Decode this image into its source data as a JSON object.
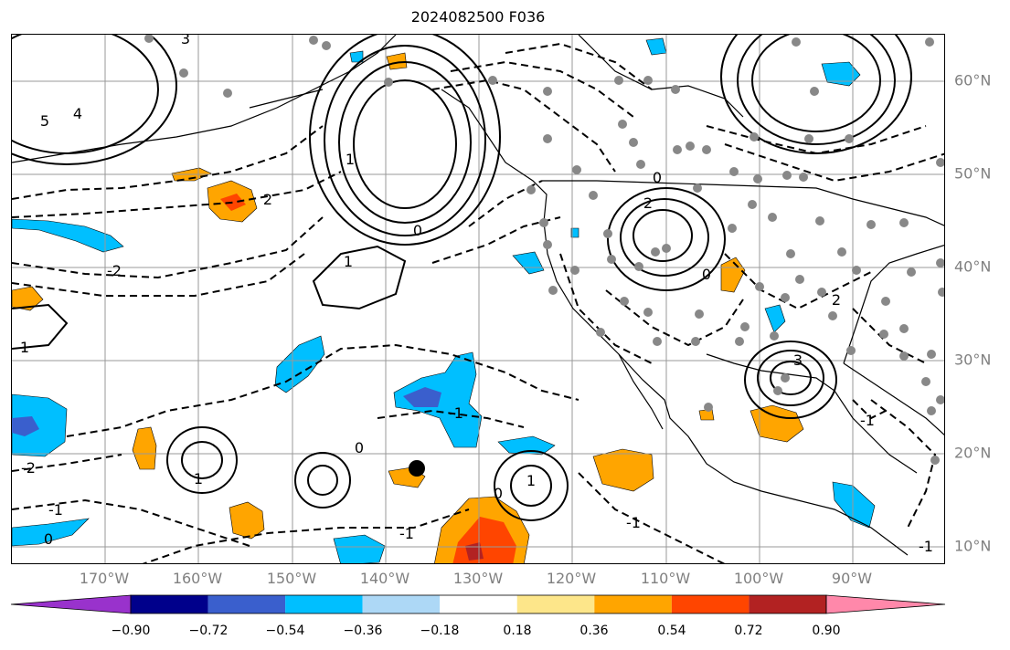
{
  "title": "2024082500 F036",
  "map": {
    "projection": "equirectangular",
    "extent": {
      "lon_min": -180,
      "lon_max": -80,
      "lat_min": 8,
      "lat_max": 65
    },
    "gridlines": true,
    "longitude_labels": [
      "170°W",
      "160°W",
      "150°W",
      "140°W",
      "130°W",
      "120°W",
      "110°W",
      "100°W",
      "90°W"
    ],
    "latitude_labels": [
      "60°N",
      "50°N",
      "40°N",
      "30°N",
      "20°N",
      "10°N"
    ],
    "contour_labels": [
      "5",
      "4",
      "3",
      "2",
      "1",
      "0",
      "-1",
      "-2",
      "1",
      "0",
      "-1",
      "3",
      "2",
      "0",
      "1",
      "-1",
      "1",
      "0",
      "1",
      "-1",
      "-2",
      "0",
      "-1",
      "2",
      "-1",
      "0"
    ],
    "station_marker": "gray circles",
    "highlight_marker": "black circle"
  },
  "colorbar": {
    "ticks": [
      "−0.90",
      "−0.72",
      "−0.54",
      "−0.36",
      "−0.18",
      "0.18",
      "0.36",
      "0.54",
      "0.72",
      "0.90"
    ],
    "colors": [
      "#9932cc",
      "#00008b",
      "#3a5fcd",
      "#00bfff",
      "#add8f6",
      "#ffffff",
      "#fde68a",
      "#ffa500",
      "#ff4500",
      "#b22222",
      "#ff88aa"
    ],
    "extend": "both"
  }
}
